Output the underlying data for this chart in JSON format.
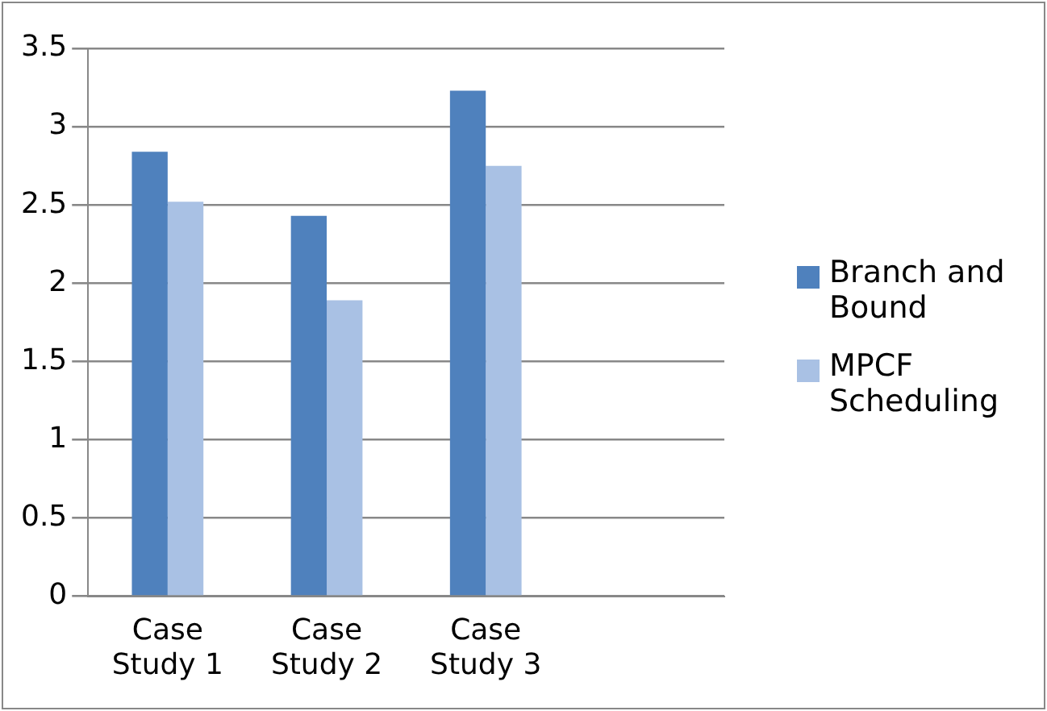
{
  "chart_data": {
    "type": "bar",
    "categories": [
      "Case Study 1",
      "Case Study 2",
      "Case Study 3",
      null
    ],
    "series": [
      {
        "name": "Branch and Bound",
        "color": "#4f81bd",
        "values": [
          2.84,
          2.43,
          3.23,
          null
        ]
      },
      {
        "name": "MPCF Scheduling",
        "color": "#a9c1e4",
        "values": [
          2.52,
          1.89,
          2.75,
          null
        ]
      }
    ],
    "ylim": [
      0,
      3.5
    ],
    "yticks": [
      0,
      0.5,
      1,
      1.5,
      2,
      2.5,
      3,
      3.5
    ],
    "grid": "y",
    "legend": "right"
  }
}
